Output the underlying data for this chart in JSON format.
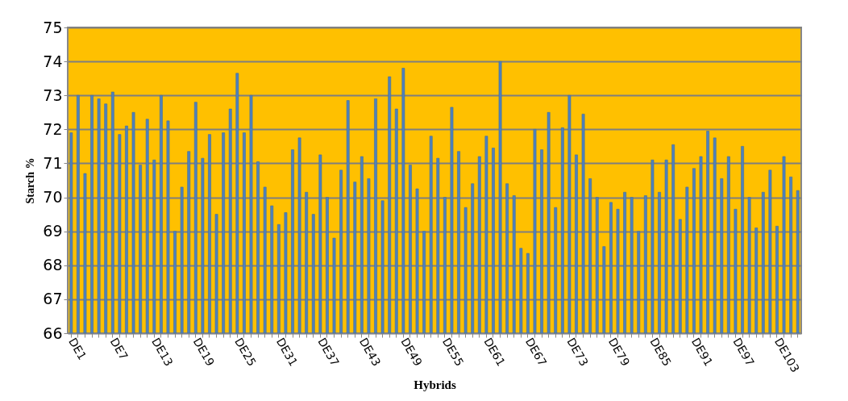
{
  "chart_data": {
    "type": "bar",
    "xlabel": "Hybrids",
    "ylabel": "Starch %",
    "categories": [
      "DE1",
      null,
      null,
      null,
      null,
      null,
      "DE7",
      null,
      null,
      null,
      null,
      null,
      "DE13",
      null,
      null,
      null,
      null,
      null,
      "DE19",
      null,
      null,
      null,
      null,
      null,
      "DE25",
      null,
      null,
      null,
      null,
      null,
      "DE31",
      null,
      null,
      null,
      null,
      null,
      "DE37",
      null,
      null,
      null,
      null,
      null,
      "DE43",
      null,
      null,
      null,
      null,
      null,
      "DE49",
      null,
      null,
      null,
      null,
      null,
      "DE55",
      null,
      null,
      null,
      null,
      null,
      "DE61",
      null,
      null,
      null,
      null,
      null,
      "DE67",
      null,
      null,
      null,
      null,
      null,
      "DE73",
      null,
      null,
      null,
      null,
      null,
      "DE79",
      null,
      null,
      null,
      null,
      null,
      "DE85",
      null,
      null,
      null,
      null,
      null,
      "DE91",
      null,
      null,
      null,
      null,
      null,
      "DE97",
      null,
      null,
      null,
      null,
      null,
      "DE103",
      null,
      null,
      null
    ],
    "values": [
      71.9,
      73.0,
      70.7,
      73.0,
      72.9,
      72.75,
      73.1,
      71.85,
      72.1,
      72.5,
      70.95,
      72.3,
      71.1,
      73.0,
      72.25,
      69.0,
      70.3,
      71.35,
      72.8,
      71.15,
      71.85,
      69.5,
      71.9,
      72.6,
      73.65,
      71.9,
      73.0,
      71.05,
      70.3,
      69.75,
      69.2,
      69.55,
      71.4,
      71.75,
      70.15,
      69.5,
      71.25,
      70.0,
      68.8,
      70.8,
      72.85,
      70.45,
      71.2,
      70.55,
      72.9,
      69.9,
      73.55,
      72.6,
      73.8,
      70.95,
      70.25,
      69.0,
      71.8,
      71.15,
      70.0,
      72.65,
      71.35,
      69.7,
      70.4,
      71.2,
      71.8,
      71.45,
      74.0,
      70.4,
      70.05,
      68.5,
      68.35,
      72.0,
      71.4,
      72.5,
      69.7,
      72.05,
      73.0,
      71.25,
      72.45,
      70.55,
      70.0,
      68.55,
      69.85,
      69.65,
      70.15,
      70.0,
      69.0,
      70.05,
      71.1,
      70.15,
      71.1,
      71.55,
      69.35,
      70.3,
      70.85,
      71.2,
      71.95,
      71.75,
      70.55,
      71.2,
      69.65,
      71.5,
      70.0,
      69.1,
      70.15,
      70.8,
      69.15,
      71.2,
      70.6,
      70.2
    ],
    "color": "#4f81bd",
    "ylim": [
      66,
      75
    ],
    "yticks": [
      66,
      67,
      68,
      69,
      70,
      71,
      72,
      73,
      74,
      75
    ],
    "grid": "y"
  }
}
